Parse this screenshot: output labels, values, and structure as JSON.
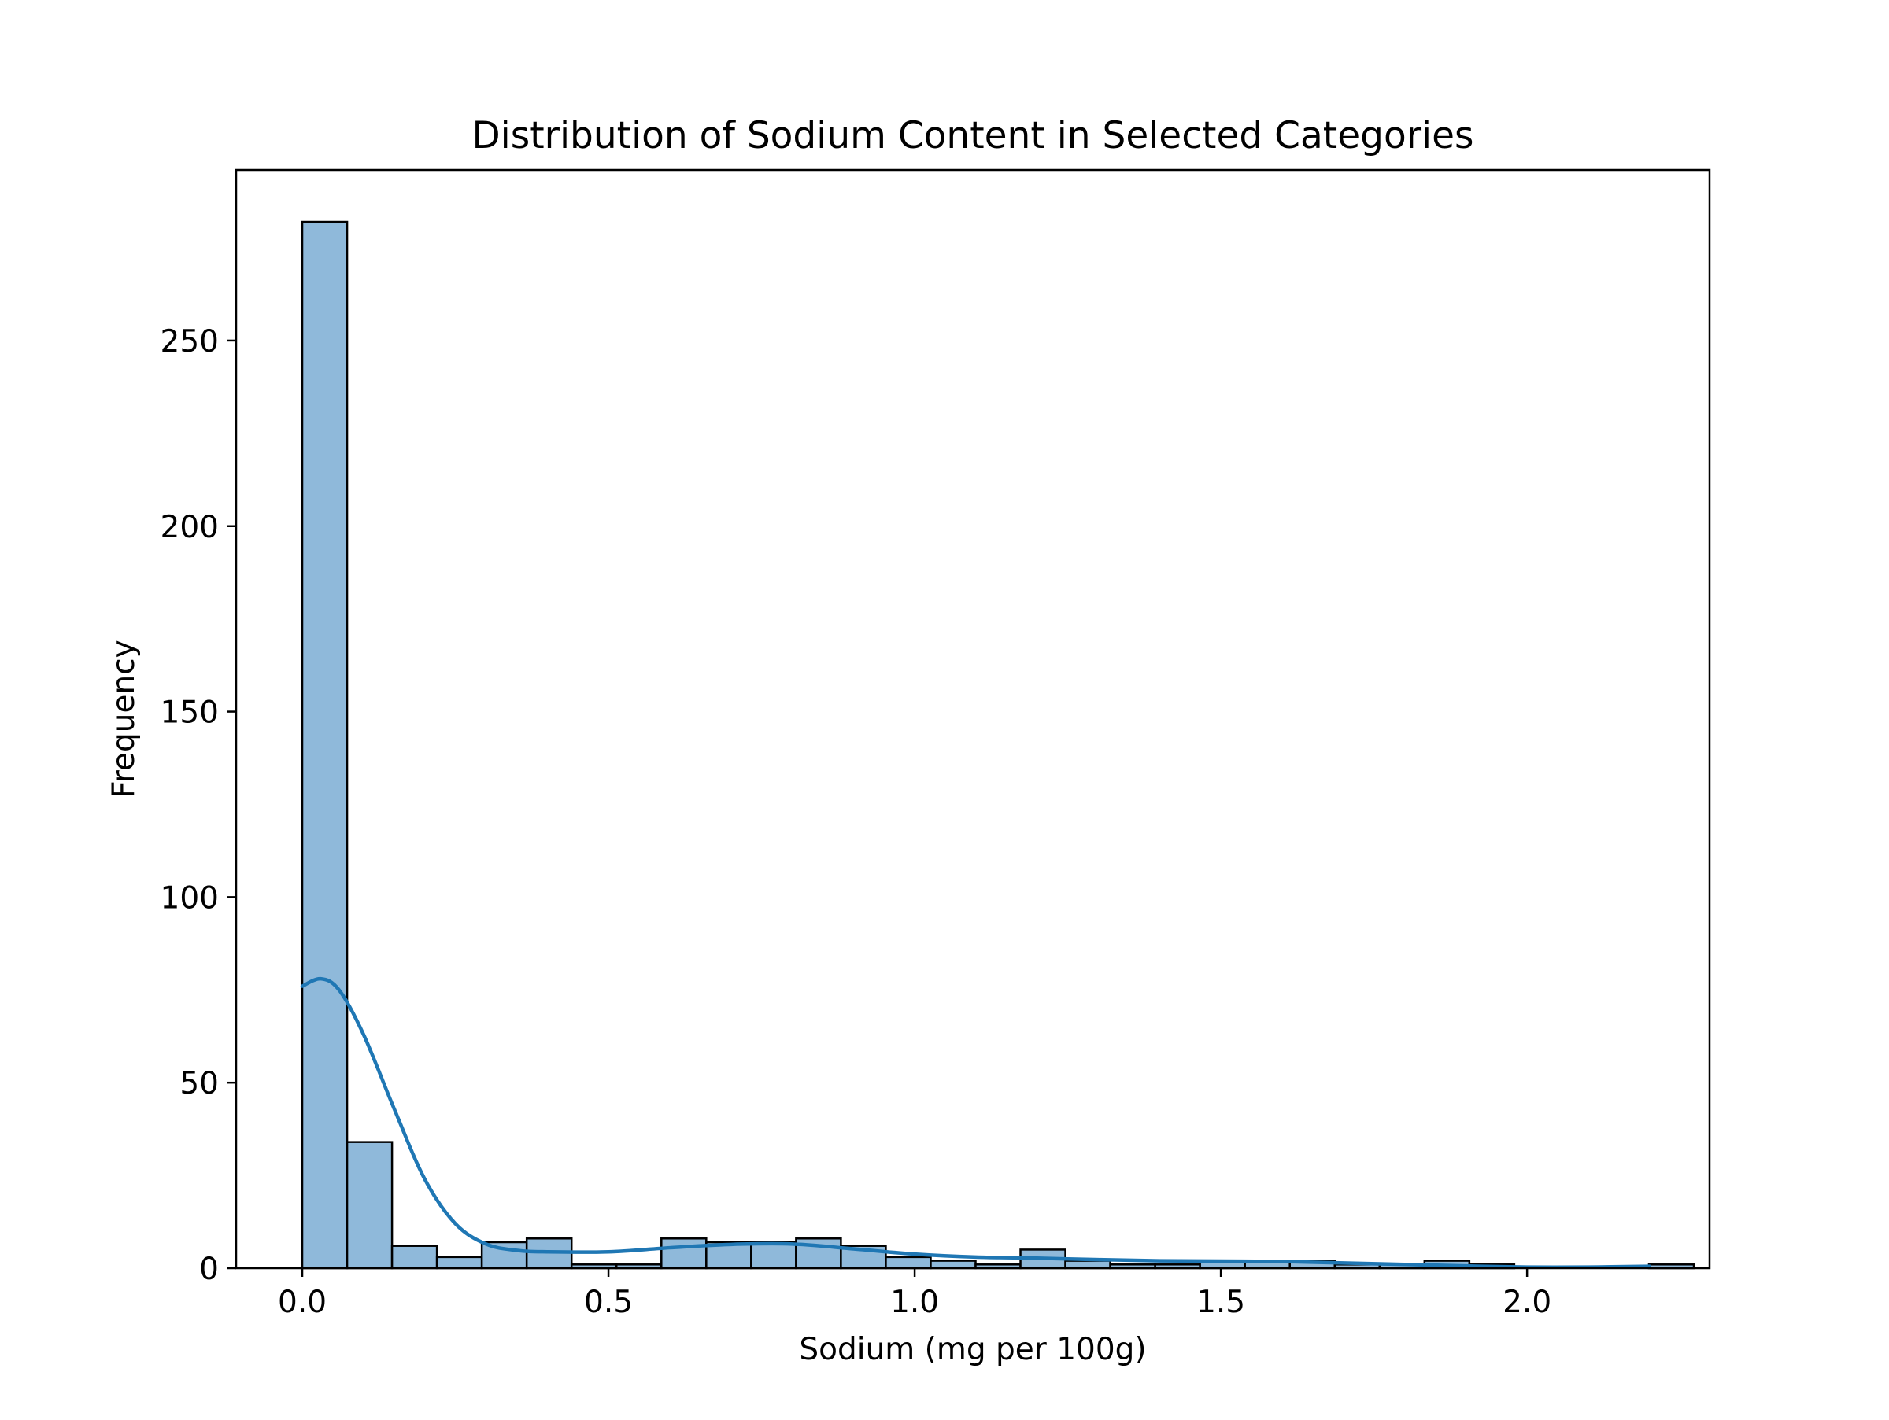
{
  "chart_data": {
    "type": "bar",
    "subtype": "histogram-with-kde",
    "title": "Distribution of Sodium Content in Selected Categories",
    "xlabel": "Sodium (mg per 100g)",
    "ylabel": "Frequency",
    "xlim": [
      -0.108,
      2.298
    ],
    "ylim": [
      0,
      296
    ],
    "xticks": [
      0.0,
      0.5,
      1.0,
      1.5,
      2.0
    ],
    "xtick_labels": [
      "0.0",
      "0.5",
      "1.0",
      "1.5",
      "2.0"
    ],
    "yticks": [
      0,
      50,
      100,
      150,
      200,
      250
    ],
    "ytick_labels": [
      "0",
      "50",
      "100",
      "150",
      "200",
      "250"
    ],
    "grid": false,
    "legend": null,
    "colors": {
      "bar_fill": "#8fb9da",
      "bar_edge": "#000000",
      "kde_line": "#1f77b4"
    },
    "bins": {
      "start": 0.0,
      "width": 0.0733,
      "counts": [
        282,
        34,
        6,
        3,
        7,
        8,
        1,
        1,
        8,
        7,
        7,
        8,
        6,
        3,
        2,
        1,
        5,
        2,
        1,
        1,
        2,
        2,
        2,
        1,
        1,
        2,
        1,
        0,
        0,
        0,
        1
      ]
    },
    "kde": {
      "name": "",
      "x": [
        0.0,
        0.03,
        0.06,
        0.1,
        0.15,
        0.2,
        0.25,
        0.3,
        0.35,
        0.4,
        0.5,
        0.6,
        0.7,
        0.8,
        0.9,
        1.0,
        1.1,
        1.2,
        1.3,
        1.4,
        1.5,
        1.6,
        1.7,
        1.8,
        1.9,
        2.0,
        2.1,
        2.2
      ],
      "y": [
        76,
        78,
        75,
        63,
        43,
        24,
        12,
        6.5,
        4.8,
        4.4,
        4.4,
        5.5,
        6.4,
        6.5,
        5.2,
        3.8,
        3.0,
        2.7,
        2.3,
        2.0,
        1.9,
        1.8,
        1.4,
        1.0,
        0.6,
        0.3,
        0.3,
        0.5
      ]
    }
  }
}
